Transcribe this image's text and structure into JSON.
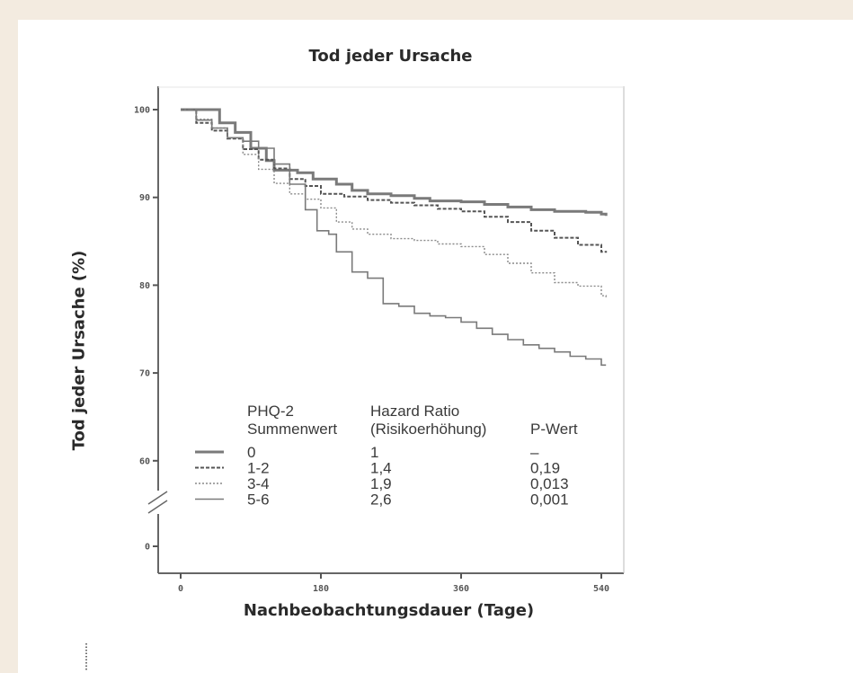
{
  "chart_data": {
    "type": "line",
    "title": "Tod jeder Ursache",
    "xlabel": "Nachbeobachtungsdauer (Tage)",
    "ylabel": "Tod jeder Ursache (%)",
    "x_ticks": [
      "0",
      "180",
      "360",
      "540"
    ],
    "x_tick_values": [
      0,
      180,
      360,
      540
    ],
    "y_ticks": [
      "100",
      "90",
      "80",
      "70",
      "60",
      "0"
    ],
    "y_tick_values": [
      100,
      90,
      80,
      70,
      60,
      0
    ],
    "y_axis_break": true,
    "xlim": [
      0,
      550
    ],
    "series": [
      {
        "name": "0",
        "color": "#7a7a7a",
        "dash": "solid",
        "points": [
          [
            0,
            100
          ],
          [
            50,
            100
          ],
          [
            50,
            98.5
          ],
          [
            70,
            97.4
          ],
          [
            90,
            95.6
          ],
          [
            110,
            94.2
          ],
          [
            120,
            93.1
          ],
          [
            150,
            92.8
          ],
          [
            170,
            92.1
          ],
          [
            200,
            91.5
          ],
          [
            220,
            90.8
          ],
          [
            240,
            90.4
          ],
          [
            270,
            90.2
          ],
          [
            300,
            89.9
          ],
          [
            320,
            89.6
          ],
          [
            360,
            89.5
          ],
          [
            390,
            89.2
          ],
          [
            420,
            88.9
          ],
          [
            450,
            88.6
          ],
          [
            480,
            88.4
          ],
          [
            520,
            88.3
          ],
          [
            540,
            88.1
          ],
          [
            546,
            87.9
          ]
        ]
      },
      {
        "name": "1-2",
        "color": "#555555",
        "dash": "dashed",
        "points": [
          [
            0,
            100
          ],
          [
            20,
            98.5
          ],
          [
            40,
            97.6
          ],
          [
            60,
            96.7
          ],
          [
            80,
            95.5
          ],
          [
            100,
            94.3
          ],
          [
            120,
            93.3
          ],
          [
            140,
            92.1
          ],
          [
            160,
            91.3
          ],
          [
            180,
            90.4
          ],
          [
            210,
            90.1
          ],
          [
            240,
            89.7
          ],
          [
            270,
            89.4
          ],
          [
            300,
            89.1
          ],
          [
            330,
            88.7
          ],
          [
            360,
            88.4
          ],
          [
            390,
            87.8
          ],
          [
            420,
            87.2
          ],
          [
            450,
            86.2
          ],
          [
            480,
            85.4
          ],
          [
            510,
            84.6
          ],
          [
            540,
            83.8
          ],
          [
            546,
            83.7
          ]
        ]
      },
      {
        "name": "3-4",
        "color": "#8a8a8a",
        "dash": "dotted",
        "points": [
          [
            0,
            100
          ],
          [
            20,
            98.9
          ],
          [
            40,
            97.9
          ],
          [
            60,
            96.8
          ],
          [
            80,
            94.9
          ],
          [
            100,
            93.2
          ],
          [
            120,
            91.6
          ],
          [
            140,
            90.4
          ],
          [
            160,
            89.8
          ],
          [
            180,
            88.8
          ],
          [
            200,
            87.2
          ],
          [
            220,
            86.4
          ],
          [
            240,
            85.8
          ],
          [
            270,
            85.3
          ],
          [
            300,
            85.1
          ],
          [
            330,
            84.7
          ],
          [
            360,
            84.4
          ],
          [
            390,
            83.5
          ],
          [
            420,
            82.5
          ],
          [
            450,
            81.4
          ],
          [
            480,
            80.3
          ],
          [
            510,
            79.9
          ],
          [
            540,
            78.8
          ],
          [
            546,
            78.5
          ]
        ]
      },
      {
        "name": "5-6",
        "color": "#7a7a7a",
        "dash": "solid-thin",
        "points": [
          [
            0,
            100
          ],
          [
            20,
            98.8
          ],
          [
            40,
            97.9
          ],
          [
            60,
            96.8
          ],
          [
            80,
            96.4
          ],
          [
            100,
            95.6
          ],
          [
            120,
            93.8
          ],
          [
            140,
            91.5
          ],
          [
            160,
            88.6
          ],
          [
            175,
            86.2
          ],
          [
            190,
            85.8
          ],
          [
            200,
            83.8
          ],
          [
            220,
            81.5
          ],
          [
            240,
            80.8
          ],
          [
            260,
            77.9
          ],
          [
            280,
            77.6
          ],
          [
            300,
            76.8
          ],
          [
            320,
            76.5
          ],
          [
            340,
            76.3
          ],
          [
            360,
            75.8
          ],
          [
            380,
            75.1
          ],
          [
            400,
            74.4
          ],
          [
            420,
            73.8
          ],
          [
            440,
            73.2
          ],
          [
            460,
            72.8
          ],
          [
            480,
            72.4
          ],
          [
            500,
            71.9
          ],
          [
            520,
            71.6
          ],
          [
            540,
            70.9
          ],
          [
            546,
            70.9
          ]
        ]
      }
    ],
    "legend": {
      "headers": [
        "PHQ-2",
        "Summenwert",
        "Hazard Ratio",
        "(Risikoerhöhung)",
        "P-Wert"
      ],
      "rows": [
        {
          "group": "0",
          "hr": "1",
          "p": "–"
        },
        {
          "group": "1-2",
          "hr": "1,4",
          "p": "0,19"
        },
        {
          "group": "3-4",
          "hr": "1,9",
          "p": "0,013"
        },
        {
          "group": "5-6",
          "hr": "2,6",
          "p": "0,001"
        }
      ]
    }
  }
}
